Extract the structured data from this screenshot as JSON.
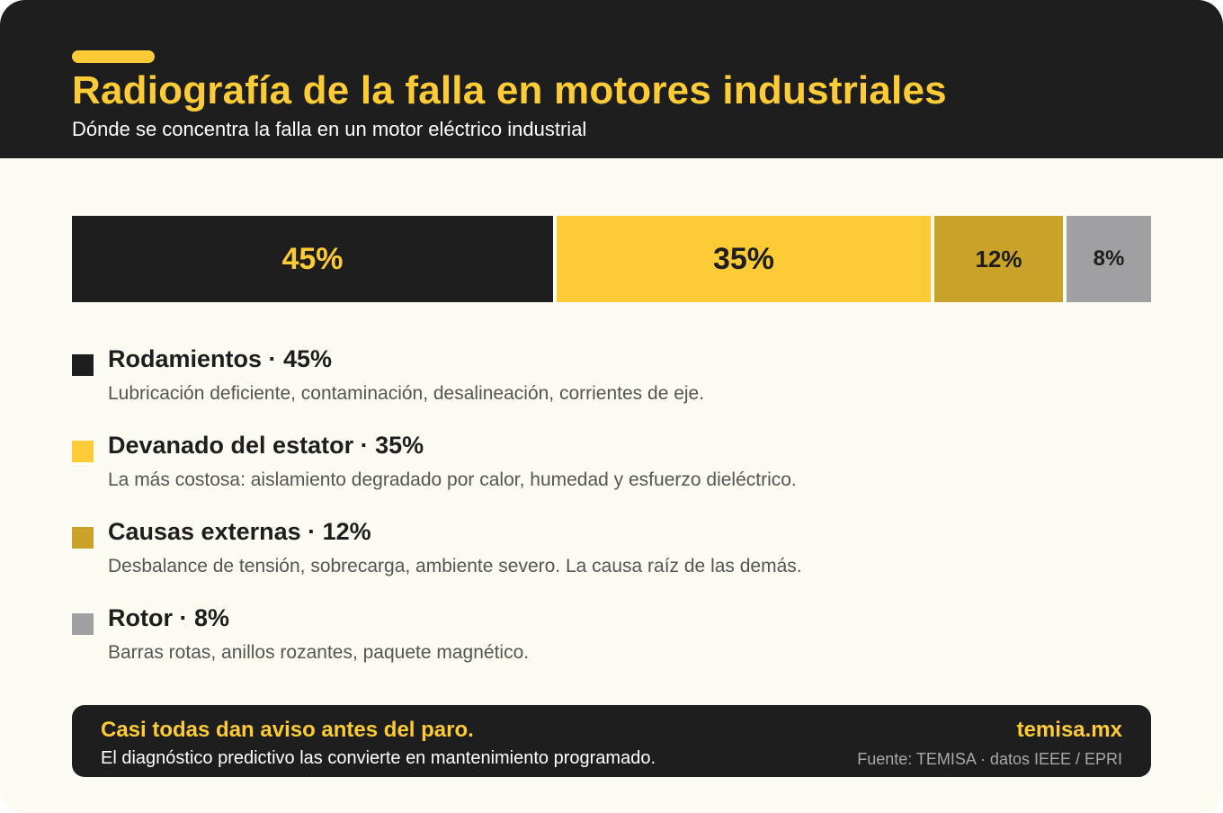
{
  "header": {
    "title": "Radiografía de la falla en motores industriales",
    "subtitle": "Dónde se concentra la falla en un motor eléctrico industrial"
  },
  "colors": {
    "dark": "#1e1e1e",
    "yellow": "#fccb35",
    "mustard": "#c9a227",
    "gray": "#a0a0a2",
    "background": "#fcfbf2"
  },
  "chart_data": {
    "type": "bar",
    "orientation": "horizontal-stacked-100",
    "categories": [
      "Rodamientos",
      "Devanado del estator",
      "Causas externas",
      "Rotor"
    ],
    "values": [
      45,
      35,
      12,
      8
    ],
    "labels": [
      "45%",
      "35%",
      "12%",
      "8%"
    ],
    "colors": [
      "#1e1e1e",
      "#fccb35",
      "#c9a227",
      "#a0a0a2"
    ],
    "label_colors": [
      "#fccb35",
      "#1e1e1e",
      "#1e1e1e",
      "#1e1e1e"
    ],
    "title": "Radiografía de la falla en motores industriales",
    "subtitle": "Dónde se concentra la falla en un motor eléctrico industrial",
    "legend": "below"
  },
  "legend": [
    {
      "title": "Rodamientos · 45%",
      "desc": "Lubricación deficiente, contaminación, desalineación, corrientes de eje."
    },
    {
      "title": "Devanado del estator · 35%",
      "desc": "La más costosa: aislamiento degradado por calor, humedad y esfuerzo dieléctrico."
    },
    {
      "title": "Causas externas · 12%",
      "desc": "Desbalance de tensión, sobrecarga, ambiente severo. La causa raíz de las demás."
    },
    {
      "title": "Rotor · 8%",
      "desc": "Barras rotas, anillos rozantes, paquete magnético."
    }
  ],
  "footer": {
    "headline": "Casi todas dan aviso antes del paro.",
    "body": "El diagnóstico predictivo las convierte en mantenimiento programado.",
    "brand": "temisa.mx",
    "source": "Fuente: TEMISA · datos IEEE / EPRI"
  }
}
